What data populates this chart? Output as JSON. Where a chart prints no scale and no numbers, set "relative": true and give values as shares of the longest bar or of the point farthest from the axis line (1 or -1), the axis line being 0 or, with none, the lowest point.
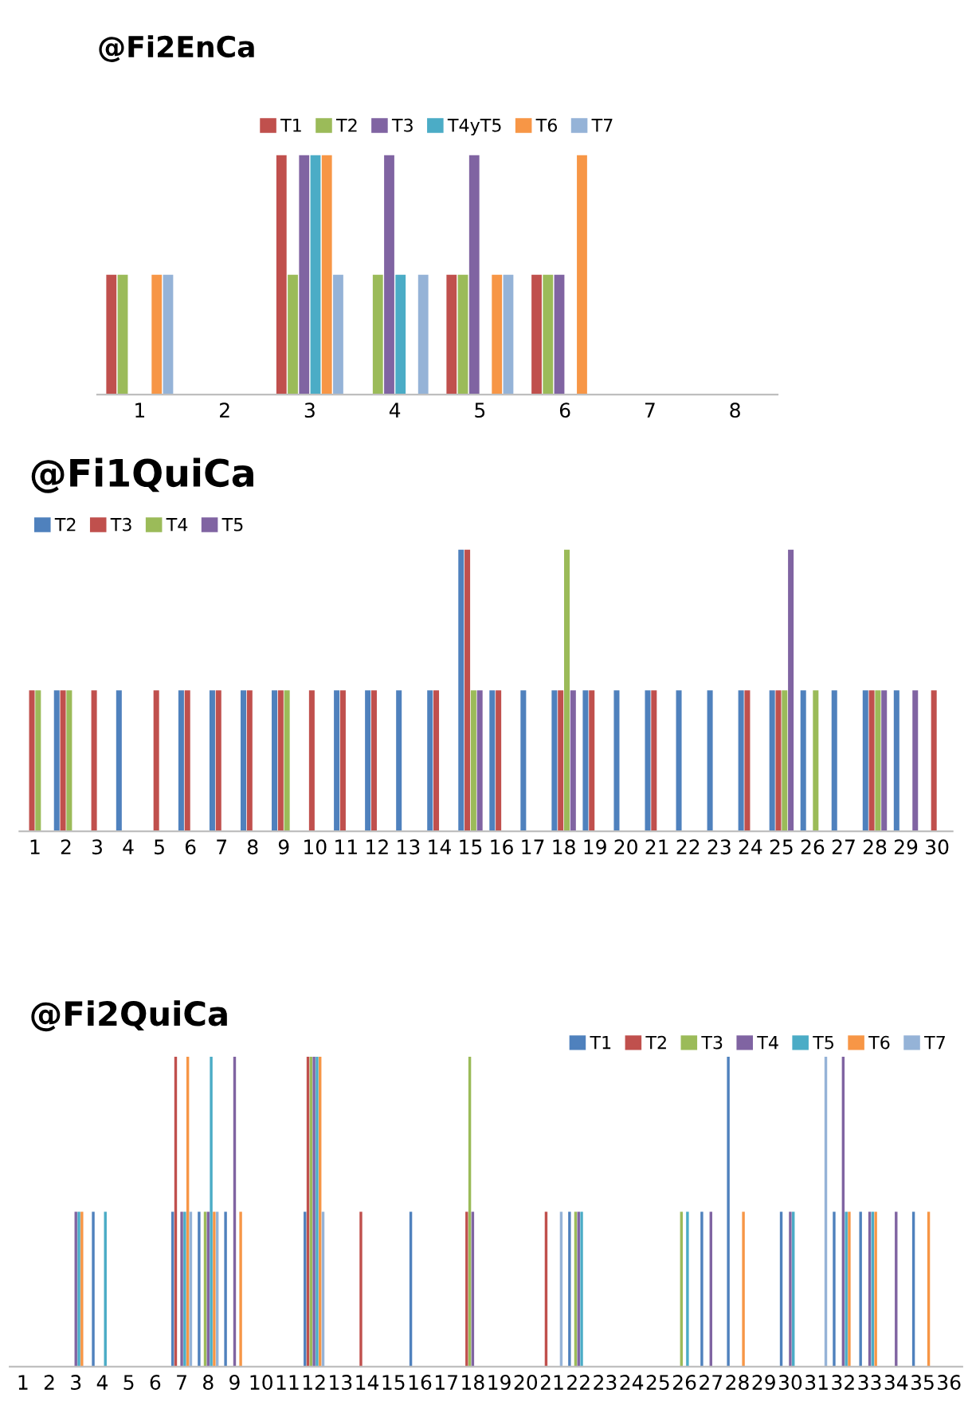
{
  "chart_data": [
    {
      "type": "bar",
      "title": "@Fi2EnCa",
      "relative": true,
      "legend": "top",
      "grid": false,
      "categories": [
        "1",
        "2",
        "3",
        "4",
        "5",
        "6",
        "7",
        "8"
      ],
      "series": [
        {
          "name": "T1",
          "color": "#c0504d",
          "values": [
            0.5,
            null,
            1,
            null,
            0.5,
            0.5,
            null,
            null
          ]
        },
        {
          "name": "T2",
          "color": "#9bbb59",
          "values": [
            0.5,
            null,
            0.5,
            0.5,
            0.5,
            0.5,
            null,
            null
          ]
        },
        {
          "name": "T3",
          "color": "#8064a2",
          "values": [
            null,
            null,
            1,
            1,
            1,
            0.5,
            null,
            null
          ]
        },
        {
          "name": "T4yT5",
          "color": "#4bacc6",
          "values": [
            null,
            null,
            1,
            0.5,
            null,
            null,
            null,
            null
          ]
        },
        {
          "name": "T6",
          "color": "#f79646",
          "values": [
            0.5,
            null,
            1,
            null,
            0.5,
            1,
            null,
            null
          ]
        },
        {
          "name": "T7",
          "color": "#95b3d7",
          "values": [
            0.5,
            null,
            0.5,
            0.5,
            0.5,
            null,
            null,
            null
          ]
        }
      ]
    },
    {
      "type": "bar",
      "title": "@Fi1QuiCa",
      "relative": true,
      "legend": "top left",
      "grid": false,
      "categories": [
        "1",
        "2",
        "3",
        "4",
        "5",
        "6",
        "7",
        "8",
        "9",
        "10",
        "11",
        "12",
        "13",
        "14",
        "15",
        "16",
        "17",
        "18",
        "19",
        "20",
        "21",
        "22",
        "23",
        "24",
        "25",
        "26",
        "27",
        "28",
        "29",
        "30"
      ],
      "series": [
        {
          "name": "T2",
          "color": "#4f81bd",
          "values": [
            null,
            0.5,
            null,
            0.5,
            null,
            0.5,
            0.5,
            0.5,
            0.5,
            null,
            0.5,
            0.5,
            0.5,
            0.5,
            1,
            0.5,
            0.5,
            0.5,
            0.5,
            0.5,
            0.5,
            0.5,
            0.5,
            0.5,
            0.5,
            0.5,
            0.5,
            0.5,
            0.5,
            null
          ]
        },
        {
          "name": "T3",
          "color": "#c0504d",
          "values": [
            0.5,
            0.5,
            0.5,
            null,
            0.5,
            0.5,
            0.5,
            0.5,
            0.5,
            0.5,
            0.5,
            0.5,
            null,
            0.5,
            1,
            0.5,
            null,
            0.5,
            0.5,
            null,
            0.5,
            null,
            null,
            0.5,
            0.5,
            null,
            null,
            0.5,
            null,
            0.5
          ]
        },
        {
          "name": "T4",
          "color": "#9bbb59",
          "values": [
            0.5,
            0.5,
            null,
            null,
            null,
            null,
            null,
            null,
            0.5,
            null,
            null,
            null,
            null,
            null,
            0.5,
            null,
            null,
            1,
            null,
            null,
            null,
            null,
            null,
            null,
            0.5,
            0.5,
            null,
            0.5,
            null,
            null
          ]
        },
        {
          "name": "T5",
          "color": "#8064a2",
          "values": [
            null,
            null,
            null,
            null,
            null,
            null,
            null,
            null,
            null,
            null,
            null,
            null,
            null,
            null,
            0.5,
            null,
            null,
            0.5,
            null,
            null,
            null,
            null,
            null,
            null,
            1,
            null,
            null,
            0.5,
            0.5,
            null
          ]
        }
      ]
    },
    {
      "type": "bar",
      "title": "@Fi2QuiCa",
      "relative": true,
      "legend": "top right",
      "grid": false,
      "categories": [
        "1",
        "2",
        "3",
        "4",
        "5",
        "6",
        "7",
        "8",
        "9",
        "10",
        "11",
        "12",
        "13",
        "14",
        "15",
        "16",
        "17",
        "18",
        "19",
        "20",
        "21",
        "22",
        "23",
        "24",
        "25",
        "26",
        "27",
        "28",
        "29",
        "30",
        "31",
        "32",
        "33",
        "34",
        "35",
        "36"
      ],
      "series": [
        {
          "name": "T1",
          "color": "#4f81bd",
          "values": [
            null,
            null,
            null,
            0.5,
            null,
            null,
            0.5,
            0.5,
            0.5,
            null,
            null,
            0.5,
            null,
            null,
            null,
            0.5,
            null,
            null,
            null,
            null,
            null,
            0.5,
            null,
            null,
            null,
            null,
            0.5,
            1,
            null,
            0.5,
            null,
            0.5,
            0.5,
            null,
            0.5,
            null
          ]
        },
        {
          "name": "T2",
          "color": "#c0504d",
          "values": [
            null,
            null,
            null,
            null,
            null,
            null,
            1,
            null,
            null,
            null,
            null,
            1,
            null,
            0.5,
            null,
            null,
            null,
            0.5,
            null,
            null,
            0.5,
            null,
            null,
            null,
            null,
            null,
            null,
            null,
            null,
            null,
            null,
            null,
            null,
            null,
            null,
            null
          ]
        },
        {
          "name": "T3",
          "color": "#9bbb59",
          "values": [
            null,
            null,
            null,
            null,
            null,
            null,
            null,
            0.5,
            null,
            null,
            null,
            1,
            null,
            null,
            null,
            null,
            null,
            1,
            null,
            null,
            null,
            0.5,
            null,
            null,
            null,
            0.5,
            null,
            null,
            null,
            null,
            null,
            null,
            null,
            null,
            null,
            null
          ]
        },
        {
          "name": "T4",
          "color": "#8064a2",
          "values": [
            null,
            null,
            0.5,
            null,
            null,
            null,
            0.5,
            0.5,
            1,
            null,
            null,
            1,
            null,
            null,
            null,
            null,
            null,
            0.5,
            null,
            null,
            null,
            0.5,
            null,
            null,
            null,
            null,
            0.5,
            null,
            null,
            0.5,
            null,
            1,
            0.5,
            0.5,
            null,
            null
          ]
        },
        {
          "name": "T5",
          "color": "#4bacc6",
          "values": [
            null,
            null,
            0.5,
            0.5,
            null,
            null,
            0.5,
            1,
            null,
            null,
            null,
            1,
            null,
            null,
            null,
            null,
            null,
            null,
            null,
            null,
            null,
            0.5,
            null,
            null,
            null,
            0.5,
            null,
            null,
            null,
            0.5,
            null,
            0.5,
            0.5,
            null,
            null,
            null
          ]
        },
        {
          "name": "T6",
          "color": "#f79646",
          "values": [
            null,
            null,
            0.5,
            null,
            null,
            null,
            1,
            0.5,
            0.5,
            null,
            null,
            1,
            null,
            null,
            null,
            null,
            null,
            null,
            null,
            null,
            null,
            null,
            null,
            null,
            null,
            null,
            null,
            0.5,
            null,
            null,
            null,
            0.5,
            0.5,
            null,
            0.5,
            null
          ]
        },
        {
          "name": "T7",
          "color": "#95b3d7",
          "values": [
            null,
            null,
            null,
            null,
            null,
            null,
            0.5,
            0.5,
            null,
            null,
            null,
            0.5,
            null,
            null,
            null,
            null,
            null,
            null,
            null,
            null,
            0.5,
            null,
            null,
            null,
            null,
            null,
            null,
            null,
            null,
            null,
            1,
            null,
            null,
            null,
            null,
            null
          ]
        }
      ]
    }
  ]
}
